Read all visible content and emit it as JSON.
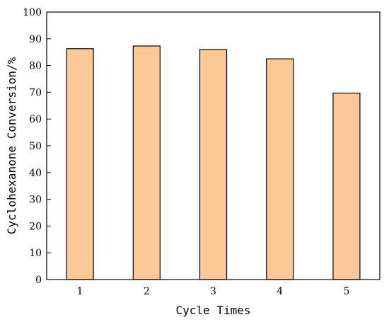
{
  "chart_data": {
    "type": "bar",
    "title": "",
    "xlabel": "Cycle Times",
    "ylabel": "Cyclohexanone Conversion/%",
    "categories": [
      "1",
      "2",
      "3",
      "4",
      "5"
    ],
    "values": [
      86.3,
      87.3,
      86.0,
      82.5,
      69.7
    ],
    "ylim": [
      0,
      100
    ],
    "yticks": [
      0,
      10,
      20,
      30,
      40,
      50,
      60,
      70,
      80,
      90,
      100
    ],
    "grid": false,
    "legend": "none",
    "bar_color": "#fcc896",
    "bar_edge_color": "#000000"
  }
}
